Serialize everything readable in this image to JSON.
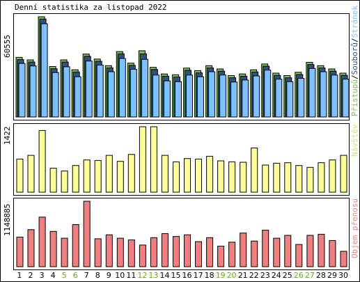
{
  "title": "Denní statistika za listopad 2022",
  "weekend_days": [
    5,
    6,
    12,
    13,
    19,
    20,
    26,
    27
  ],
  "colors": {
    "hits": "#80c060",
    "files": "#305080",
    "pages": "#80c0ff",
    "visits": "#ffff99",
    "traffic": "#f08080",
    "weekend_label": "#66aa22",
    "pages_label": "#80c0ff"
  },
  "chart_data": [
    {
      "type": "bar",
      "panel": "top",
      "max_label": "60555",
      "legend": [
        "Přístupů",
        "Souborů",
        "Stránek"
      ],
      "legend_separator": "/",
      "categories": [
        "1",
        "2",
        "3",
        "4",
        "5",
        "6",
        "7",
        "8",
        "9",
        "10",
        "11",
        "12",
        "13",
        "14",
        "15",
        "16",
        "17",
        "18",
        "19",
        "20",
        "21",
        "22",
        "23",
        "24",
        "25",
        "26",
        "27",
        "28",
        "29",
        "30"
      ],
      "series": [
        {
          "name": "Přístupů",
          "values": [
            36000,
            34500,
            60555,
            30500,
            34500,
            28500,
            38000,
            35000,
            31000,
            39500,
            32500,
            40000,
            30000,
            26000,
            25500,
            29500,
            28000,
            31000,
            29000,
            25000,
            26000,
            28500,
            32000,
            26500,
            25000,
            27000,
            33000,
            31000,
            29000,
            26500
          ]
        },
        {
          "name": "Souborů",
          "values": [
            35500,
            34000,
            60000,
            30000,
            34000,
            28000,
            37500,
            34500,
            30500,
            39000,
            32000,
            39000,
            29500,
            25500,
            25000,
            29000,
            27500,
            30500,
            28500,
            24500,
            25500,
            28000,
            31500,
            26000,
            24500,
            26500,
            32500,
            30500,
            28500,
            26000
          ]
        },
        {
          "name": "Stránek",
          "values": [
            34000,
            32500,
            58000,
            28500,
            32000,
            26000,
            35500,
            33000,
            29000,
            37000,
            30500,
            36500,
            27000,
            23500,
            23000,
            27000,
            26000,
            29000,
            27000,
            22800,
            24000,
            26500,
            30000,
            24500,
            23000,
            25000,
            31000,
            29000,
            27000,
            24500
          ]
        }
      ]
    },
    {
      "type": "bar",
      "panel": "middle",
      "max_label": "1422",
      "legend": [
        "Návštěv"
      ],
      "categories": [
        "1",
        "2",
        "3",
        "4",
        "5",
        "6",
        "7",
        "8",
        "9",
        "10",
        "11",
        "12",
        "13",
        "14",
        "15",
        "16",
        "17",
        "18",
        "19",
        "20",
        "21",
        "22",
        "23",
        "24",
        "25",
        "26",
        "27",
        "28",
        "29",
        "30"
      ],
      "series": [
        {
          "name": "Návštěv",
          "values": [
            720,
            800,
            1340,
            520,
            460,
            580,
            700,
            690,
            800,
            670,
            820,
            1422,
            1422,
            800,
            660,
            730,
            720,
            780,
            680,
            660,
            650,
            960,
            590,
            630,
            640,
            580,
            540,
            640,
            700,
            800
          ]
        }
      ]
    },
    {
      "type": "bar",
      "panel": "bottom",
      "max_label": "1148885",
      "legend": [
        "Objem přenosu"
      ],
      "categories": [
        "1",
        "2",
        "3",
        "4",
        "5",
        "6",
        "7",
        "8",
        "9",
        "10",
        "11",
        "12",
        "13",
        "14",
        "15",
        "16",
        "17",
        "18",
        "19",
        "20",
        "21",
        "22",
        "23",
        "24",
        "25",
        "26",
        "27",
        "28",
        "29",
        "30"
      ],
      "series": [
        {
          "name": "Objem přenosu",
          "values": [
            520000,
            650000,
            870000,
            620000,
            500000,
            740000,
            1148885,
            490000,
            560000,
            500000,
            470000,
            380000,
            510000,
            580000,
            530000,
            560000,
            440000,
            510000,
            360000,
            430000,
            590000,
            450000,
            640000,
            500000,
            550000,
            390000,
            550000,
            570000,
            460000,
            270000
          ]
        }
      ]
    }
  ]
}
